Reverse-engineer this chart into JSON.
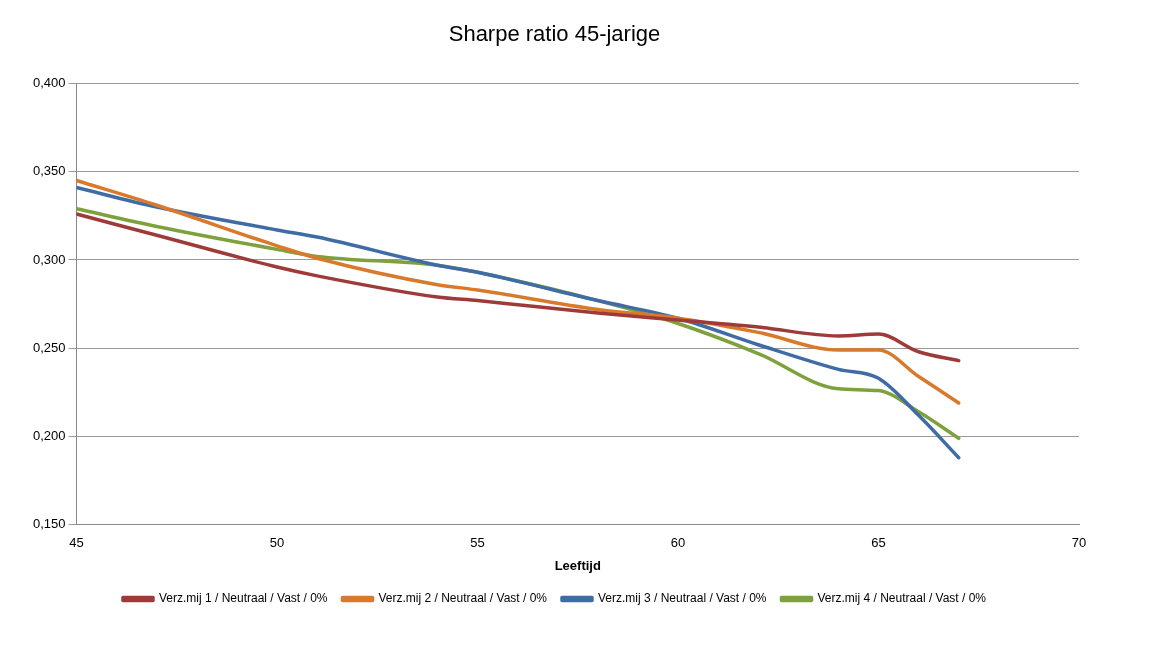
{
  "chart_data": {
    "type": "line",
    "title": "Sharpe ratio 45-jarige",
    "xlabel": "Leeftijd",
    "x": [
      45,
      47,
      50,
      51,
      54,
      55,
      58,
      60,
      62,
      64,
      65,
      66,
      67
    ],
    "series": [
      {
        "name": "Verz.mij 1 / Neutraal / Vast / 0%",
        "color": "#9e3a38",
        "values": [
          0.326,
          0.314,
          0.296,
          0.291,
          0.279,
          0.277,
          0.27,
          0.266,
          0.262,
          0.257,
          0.258,
          0.248,
          0.243
        ]
      },
      {
        "name": "Verz.mij 2 / Neutraal / Vast / 0%",
        "color": "#d9792b",
        "values": [
          0.345,
          0.331,
          0.308,
          0.301,
          0.286,
          0.283,
          0.272,
          0.267,
          0.259,
          0.249,
          0.249,
          0.234,
          0.219
        ]
      },
      {
        "name": "Verz.mij 3 / Neutraal / Vast / 0%",
        "color": "#3f6ca5",
        "values": [
          0.341,
          0.33,
          0.317,
          0.313,
          0.297,
          0.293,
          0.277,
          0.267,
          0.252,
          0.238,
          0.233,
          0.212,
          0.188
        ]
      },
      {
        "name": "Verz.mij 4 / Neutraal / Vast / 0%",
        "color": "#7ea13e",
        "values": [
          0.329,
          0.319,
          0.306,
          0.302,
          0.297,
          0.293,
          0.277,
          0.264,
          0.247,
          0.227,
          0.226,
          0.214,
          0.199
        ]
      }
    ],
    "xlim": [
      45,
      70
    ],
    "xticks": [
      45,
      50,
      55,
      60,
      65,
      70
    ],
    "ylim": [
      0.15,
      0.4
    ],
    "yticks": [
      {
        "value": 0.15,
        "label": "0,150"
      },
      {
        "value": 0.2,
        "label": "0,200"
      },
      {
        "value": 0.25,
        "label": "0,250"
      },
      {
        "value": 0.3,
        "label": "0,300"
      },
      {
        "value": 0.35,
        "label": "0,350"
      },
      {
        "value": 0.4,
        "label": "0,400"
      }
    ],
    "grid": "y",
    "legend": "bottom",
    "marker": "none",
    "line_style": "solid"
  }
}
